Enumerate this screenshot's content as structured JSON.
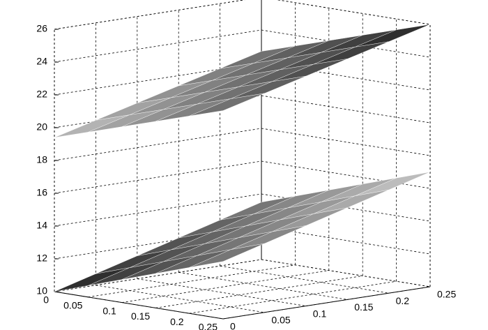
{
  "chart_data": {
    "type": "surface",
    "x": [
      0,
      0.05,
      0.1,
      0.15,
      0.2,
      0.25
    ],
    "y": [
      0,
      0.05,
      0.1,
      0.15,
      0.2,
      0.25
    ],
    "xlim": [
      0,
      0.25
    ],
    "ylim": [
      0,
      0.25
    ],
    "zlim": [
      10,
      26
    ],
    "xticks": [
      0,
      0.05,
      0.1,
      0.15,
      0.2,
      0.25
    ],
    "yticks": [
      0,
      0.05,
      0.1,
      0.15,
      0.2,
      0.25
    ],
    "zticks": [
      10,
      12,
      14,
      16,
      18,
      20,
      22,
      24,
      26
    ],
    "grid": true,
    "series": [
      {
        "values": [
          [
            10,
            10.7,
            11.4,
            12.1,
            12.8,
            13.5
          ],
          [
            10.7,
            11.4,
            12.1,
            12.8,
            13.5,
            14.2
          ],
          [
            11.4,
            12.1,
            12.8,
            13.5,
            14.2,
            14.9
          ],
          [
            12.1,
            12.8,
            13.5,
            14.2,
            14.9,
            15.6
          ],
          [
            12.8,
            13.5,
            14.2,
            14.9,
            15.6,
            16.3
          ],
          [
            13.5,
            14.2,
            14.9,
            15.6,
            16.3,
            17
          ]
        ]
      },
      {
        "values": [
          [
            19.4,
            20.06,
            20.72,
            21.38,
            22.04,
            22.7
          ],
          [
            20.06,
            20.72,
            21.38,
            22.04,
            22.7,
            23.36
          ],
          [
            20.72,
            21.38,
            22.04,
            22.7,
            23.36,
            24.02
          ],
          [
            21.38,
            22.04,
            22.7,
            23.36,
            24.02,
            24.68
          ],
          [
            22.04,
            22.7,
            23.36,
            24.02,
            24.68,
            25.34
          ],
          [
            22.7,
            23.36,
            24.02,
            24.68,
            25.34,
            26
          ]
        ]
      }
    ]
  }
}
